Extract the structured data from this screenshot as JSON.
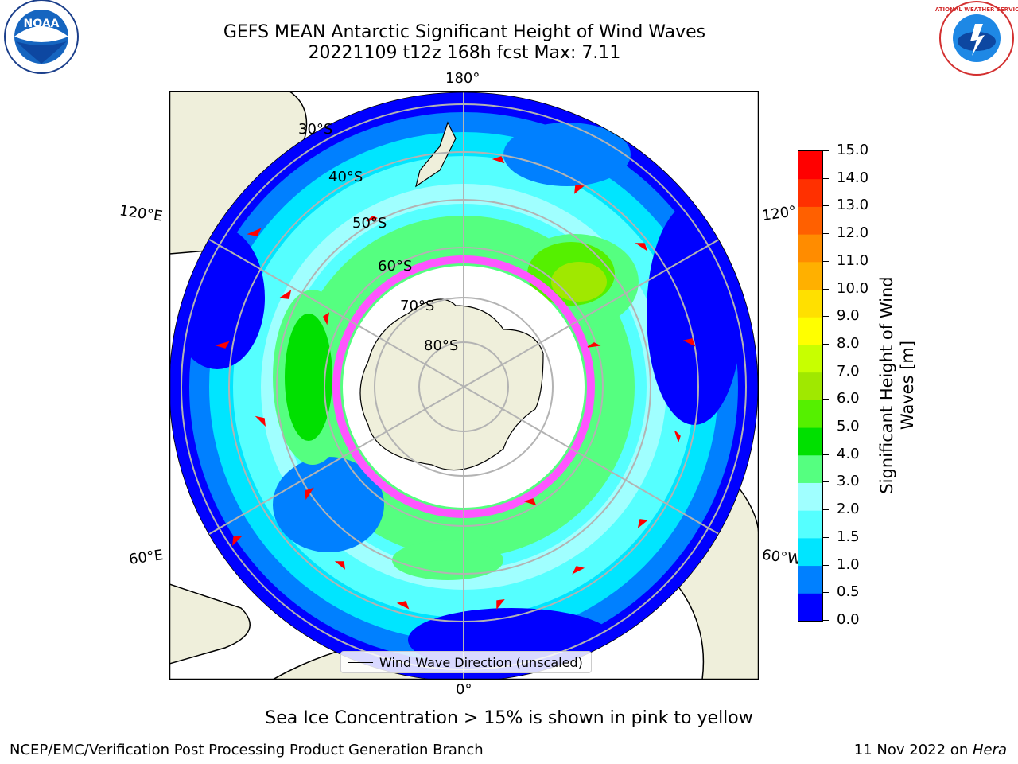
{
  "header": {
    "title_line1": "GEFS MEAN Antarctic Significant Height of Wind Waves",
    "title_line2": "20221109 t12z 168h fcst   Max: 7.11",
    "left_logo": "NOAA",
    "right_logo": "NATIONAL WEATHER SERVICE"
  },
  "map": {
    "lon_labels": {
      "top": "180°",
      "bottom": "0°",
      "ul": "120°E",
      "ll": "60°E",
      "ur": "120°",
      "lr": "60°W"
    },
    "lat_labels": [
      "30°S",
      "40°S",
      "50°S",
      "60°S",
      "70°S",
      "80°S"
    ],
    "legend_label": "Wind Wave Direction (unscaled)"
  },
  "colorbar": {
    "label": "Significant Height of Wind Waves [m]",
    "ticks": [
      "15.0",
      "14.0",
      "13.0",
      "12.0",
      "11.0",
      "10.0",
      "9.0",
      "8.0",
      "7.0",
      "6.0",
      "5.0",
      "4.0",
      "3.0",
      "2.0",
      "1.5",
      "1.0",
      "0.5",
      "0.0"
    ],
    "colors": [
      "#0000ff",
      "#0080ff",
      "#00e5ff",
      "#55ffff",
      "#a0ffff",
      "#55ff80",
      "#00e000",
      "#55f000",
      "#a0e800",
      "#c8ff00",
      "#ffff00",
      "#ffe000",
      "#ffb000",
      "#ff8c00",
      "#ff6000",
      "#ff3000",
      "#ff0000"
    ]
  },
  "notes": {
    "sea_ice": "Sea Ice Concentration > 15% is shown in pink to yellow"
  },
  "footer": {
    "left": "NCEP/EMC/Verification Post Processing Product Generation Branch",
    "right_date": "11 Nov 2022 on ",
    "right_machine": "Hera"
  }
}
